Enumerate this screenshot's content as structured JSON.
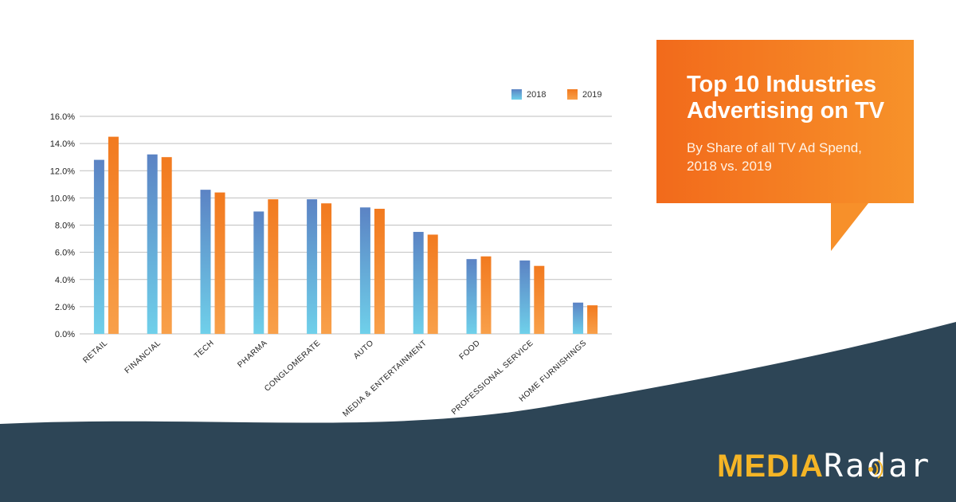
{
  "chart_data": {
    "type": "bar",
    "title": "Top 10 Industries Advertising on TV",
    "subtitle": "By Share of all TV Ad Spend, 2018 vs. 2019",
    "xlabel": "",
    "ylabel": "",
    "ylim": [
      0,
      16
    ],
    "yticks": [
      0,
      2,
      4,
      6,
      8,
      10,
      12,
      14,
      16
    ],
    "ytick_labels": [
      "0.0%",
      "2.0%",
      "4.0%",
      "6.0%",
      "8.0%",
      "10.0%",
      "12.0%",
      "14.0%",
      "16.0%"
    ],
    "grid": true,
    "legend_position": "top-right",
    "categories": [
      "RETAIL",
      "FINANCIAL",
      "TECH",
      "PHARMA",
      "CONGLOMERATE",
      "AUTO",
      "MEDIA & ENTERTAINMENT",
      "FOOD",
      "PROFESSIONAL SERVICE",
      "HOME FURNISHINGS"
    ],
    "series": [
      {
        "name": "2018",
        "values": [
          12.8,
          13.2,
          10.6,
          9.0,
          9.9,
          9.3,
          7.5,
          5.5,
          5.4,
          2.3
        ]
      },
      {
        "name": "2019",
        "values": [
          14.5,
          13.0,
          10.4,
          9.9,
          9.6,
          9.2,
          7.3,
          5.7,
          5.0,
          2.1
        ]
      }
    ]
  },
  "callout": {
    "title_line1": "Top 10 Industries",
    "title_line2": "Advertising on TV",
    "subtitle_line1": "By Share of all TV Ad Spend,",
    "subtitle_line2": "2018 vs. 2019"
  },
  "legend": {
    "label_2018": "2018",
    "label_2019": "2019"
  },
  "brand": {
    "part1": "MEDIA",
    "part2": "Radar"
  },
  "colors": {
    "bar_2018_top": "#5b83c4",
    "bar_2018_bottom": "#6fd0ea",
    "bar_2019_top": "#f27a1f",
    "bar_2019_bottom": "#f8a04a",
    "wave": "#2d4556",
    "callout": "#f47d20",
    "brand_accent": "#f5b526"
  }
}
